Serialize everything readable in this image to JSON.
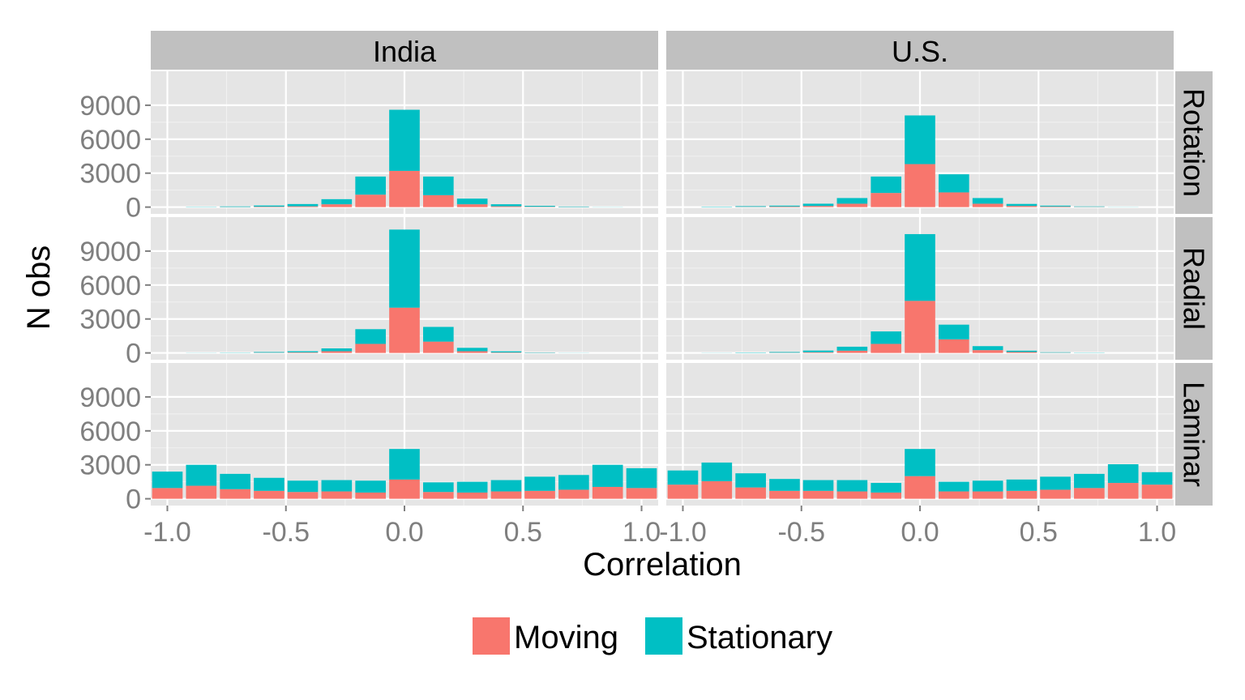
{
  "chart_data": {
    "type": "bar",
    "stacked": true,
    "xlabel": "Correlation",
    "ylabel": "N obs",
    "xlim": [
      -1.07,
      1.07
    ],
    "ylim": [
      -600,
      12000
    ],
    "x_ticks": [
      -1.0,
      -0.5,
      0.0,
      0.5,
      1.0
    ],
    "x_tick_labels": [
      "-1.0",
      "-0.5",
      "0.0",
      "0.5",
      "1.0"
    ],
    "y_ticks": [
      0,
      3000,
      6000,
      9000
    ],
    "y_tick_labels": [
      "0",
      "3000",
      "6000",
      "9000"
    ],
    "grid": true,
    "legend": {
      "position": "bottom",
      "entries": [
        {
          "label": "Moving",
          "color": "#f8766d"
        },
        {
          "label": "Stationary",
          "color": "#00bfc4"
        }
      ]
    },
    "bin_width": 0.143,
    "x": [
      -1.0,
      -0.857,
      -0.714,
      -0.571,
      -0.429,
      -0.286,
      -0.143,
      0.0,
      0.143,
      0.286,
      0.429,
      0.571,
      0.714,
      0.857,
      1.0
    ],
    "columns": [
      "India",
      "U.S."
    ],
    "rows": [
      "Rotation",
      "Radial",
      "Laminar"
    ],
    "panels": [
      {
        "column": "India",
        "row": "Rotation",
        "series": [
          {
            "name": "Moving",
            "values": [
              0,
              0,
              10,
              40,
              70,
              250,
              1100,
              3200,
              1050,
              250,
              70,
              30,
              10,
              0,
              0
            ]
          },
          {
            "name": "Stationary",
            "values": [
              0,
              20,
              50,
              100,
              200,
              450,
              1600,
              5400,
              1650,
              500,
              180,
              80,
              40,
              10,
              0
            ]
          }
        ]
      },
      {
        "column": "U.S.",
        "row": "Rotation",
        "series": [
          {
            "name": "Moving",
            "values": [
              0,
              0,
              20,
              50,
              100,
              300,
              1250,
              3800,
              1300,
              300,
              100,
              50,
              20,
              0,
              0
            ]
          },
          {
            "name": "Stationary",
            "values": [
              0,
              30,
              60,
              80,
              200,
              500,
              1450,
              4300,
              1600,
              500,
              180,
              80,
              40,
              10,
              0
            ]
          }
        ]
      },
      {
        "column": "India",
        "row": "Radial",
        "series": [
          {
            "name": "Moving",
            "values": [
              0,
              0,
              0,
              20,
              50,
              150,
              800,
              4000,
              1000,
              150,
              40,
              10,
              0,
              0,
              0
            ]
          },
          {
            "name": "Stationary",
            "values": [
              0,
              10,
              20,
              60,
              100,
              250,
              1300,
              6900,
              1300,
              300,
              100,
              30,
              10,
              0,
              0
            ]
          }
        ]
      },
      {
        "column": "U.S.",
        "row": "Radial",
        "series": [
          {
            "name": "Moving",
            "values": [
              0,
              0,
              0,
              20,
              60,
              200,
              800,
              4600,
              1200,
              250,
              80,
              20,
              0,
              0,
              0
            ]
          },
          {
            "name": "Stationary",
            "values": [
              0,
              10,
              30,
              60,
              150,
              350,
              1100,
              5900,
              1300,
              350,
              120,
              40,
              20,
              0,
              0
            ]
          }
        ]
      },
      {
        "column": "India",
        "row": "Laminar",
        "series": [
          {
            "name": "Moving",
            "values": [
              950,
              1150,
              850,
              700,
              600,
              650,
              550,
              1700,
              600,
              550,
              650,
              700,
              800,
              1050,
              950
            ]
          },
          {
            "name": "Stationary",
            "values": [
              1450,
              1850,
              1350,
              1150,
              1000,
              1000,
              1050,
              2700,
              850,
              950,
              1000,
              1250,
              1300,
              1950,
              1750
            ]
          }
        ]
      },
      {
        "column": "U.S.",
        "row": "Laminar",
        "series": [
          {
            "name": "Moving",
            "values": [
              1250,
              1550,
              1000,
              700,
              700,
              650,
              550,
              2000,
              650,
              650,
              700,
              800,
              950,
              1400,
              1250
            ]
          },
          {
            "name": "Stationary",
            "values": [
              1250,
              1650,
              1250,
              1050,
              950,
              1000,
              850,
              2400,
              850,
              950,
              1000,
              1150,
              1250,
              1650,
              1100
            ]
          }
        ]
      }
    ]
  }
}
